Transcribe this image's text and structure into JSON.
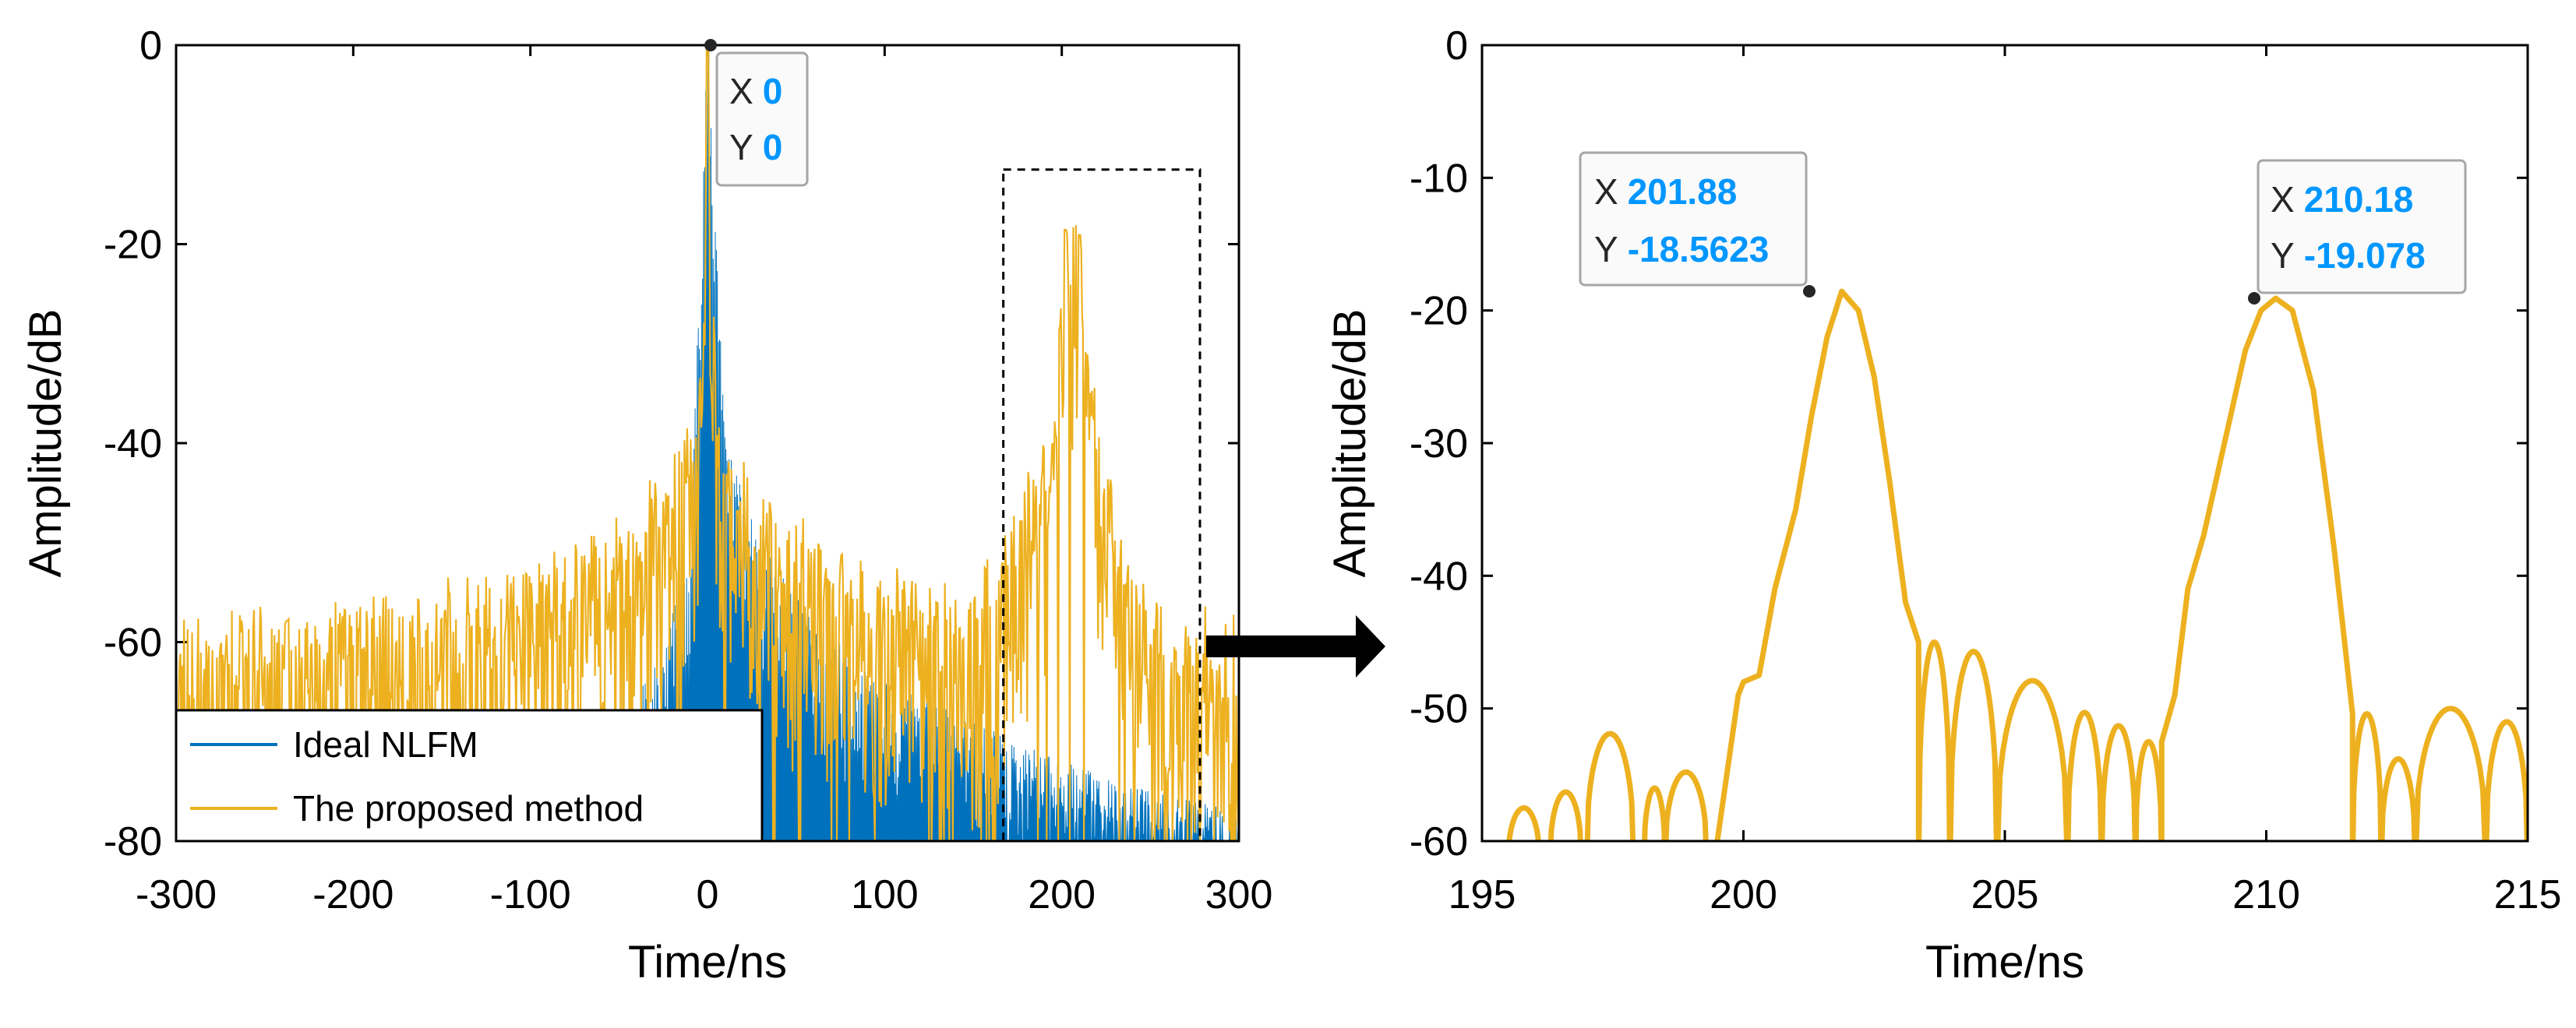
{
  "chart_data": [
    {
      "type": "line",
      "panel": "left",
      "xlabel": "Time/ns",
      "ylabel": "Amplitude/dB",
      "xlim": [
        -300,
        300
      ],
      "ylim": [
        -80,
        0
      ],
      "xticks": [
        "-300",
        "-200",
        "-100",
        "0",
        "100",
        "200",
        "300"
      ],
      "yticks": [
        "0",
        "-20",
        "-40",
        "-60",
        "-80"
      ],
      "legend": {
        "position": "bottom-left",
        "entries": [
          "Ideal NLFM",
          "The proposed method"
        ]
      },
      "series": [
        {
          "name": "Ideal NLFM",
          "color": "#0072bd",
          "style": "dense filled response decaying from 0 dB peak",
          "envelope_x": [
            -300,
            -100,
            -60,
            -30,
            -10,
            0,
            10,
            30,
            60,
            100,
            150,
            200,
            250,
            300
          ],
          "envelope_y": [
            -80,
            -80,
            -72,
            -62,
            -52,
            0,
            -40,
            -50,
            -58,
            -64,
            -68,
            -72,
            -75,
            -77
          ]
        },
        {
          "name": "The proposed method",
          "color": "#edb120",
          "style": "noisy line",
          "envelope_x": [
            -300,
            -200,
            -100,
            -50,
            -20,
            -5,
            0,
            5,
            20,
            50,
            100,
            150,
            195,
            202,
            210,
            220,
            250,
            300
          ],
          "envelope_y": [
            -60,
            -58,
            -55,
            -50,
            -44,
            -38,
            0,
            -38,
            -44,
            -50,
            -55,
            -57,
            -40,
            -18.56,
            -19.08,
            -40,
            -58,
            -60
          ]
        }
      ],
      "datatip": {
        "x_key": "X",
        "x_value": "0",
        "y_key": "Y",
        "y_value": "0",
        "point_x": 0,
        "point_y": 0
      },
      "zoom_box": {
        "x_range": [
          167,
          278
        ],
        "y_range": [
          -80,
          -12.5
        ]
      }
    },
    {
      "type": "line",
      "panel": "right",
      "xlabel": "Time/ns",
      "ylabel": "Amplitude/dB",
      "xlim": [
        195,
        215
      ],
      "ylim": [
        -60,
        0
      ],
      "xticks": [
        "195",
        "200",
        "205",
        "210",
        "215"
      ],
      "yticks": [
        "0",
        "-10",
        "-20",
        "-30",
        "-40",
        "-50",
        "-60"
      ],
      "series": [
        {
          "name": "The proposed method (zoom)",
          "color": "#edb120",
          "lobes": [
            {
              "x0": 195.5,
              "x1": 196.1,
              "peak": -57.5
            },
            {
              "x0": 196.3,
              "x1": 196.9,
              "peak": -56.3
            },
            {
              "x0": 197.0,
              "x1": 197.9,
              "peak": -51.9
            },
            {
              "x0": 198.1,
              "x1": 198.5,
              "peak": -56.0
            },
            {
              "x0": 198.5,
              "x1": 199.3,
              "peak": -54.8
            },
            {
              "x0": 203.35,
              "x1": 203.95,
              "peak": -45.0
            },
            {
              "x0": 203.95,
              "x1": 204.85,
              "peak": -45.7
            },
            {
              "x0": 204.85,
              "x1": 206.2,
              "peak": -47.9
            },
            {
              "x0": 206.2,
              "x1": 206.85,
              "peak": -50.3
            },
            {
              "x0": 206.85,
              "x1": 207.5,
              "peak": -51.3
            },
            {
              "x0": 207.5,
              "x1": 208.0,
              "peak": -52.5
            },
            {
              "x0": 211.65,
              "x1": 212.2,
              "peak": -50.4
            },
            {
              "x0": 212.2,
              "x1": 212.85,
              "peak": -53.8
            },
            {
              "x0": 212.85,
              "x1": 214.2,
              "peak": -50.0
            },
            {
              "x0": 214.2,
              "x1": 215.0,
              "peak": -51.0
            }
          ],
          "main_lobes": [
            {
              "x": [
                199.5,
                199.9,
                200.0,
                200.3,
                200.6,
                201.0,
                201.3,
                201.6,
                201.88,
                202.2,
                202.5,
                202.8,
                203.1,
                203.35
              ],
              "y": [
                -60,
                -49,
                -48,
                -47.5,
                -41,
                -35,
                -28,
                -22,
                -18.56,
                -20,
                -25,
                -33,
                -42,
                -45
              ]
            },
            {
              "x": [
                208.0,
                208.25,
                208.5,
                208.8,
                209.2,
                209.6,
                209.9,
                210.18,
                210.5,
                210.9,
                211.3,
                211.65
              ],
              "y": [
                -52.5,
                -49,
                -41,
                -37,
                -30,
                -23,
                -20,
                -19.08,
                -20,
                -26,
                -38,
                -50.4
              ]
            }
          ]
        }
      ],
      "datatips": [
        {
          "x_key": "X",
          "x_value": "201.88",
          "y_key": "Y",
          "y_value": "-18.5623",
          "point_x": 201.88,
          "point_y": -18.5623
        },
        {
          "x_key": "X",
          "x_value": "210.18",
          "y_key": "Y",
          "y_value": "-19.078",
          "point_x": 210.18,
          "point_y": -19.078
        }
      ]
    }
  ]
}
